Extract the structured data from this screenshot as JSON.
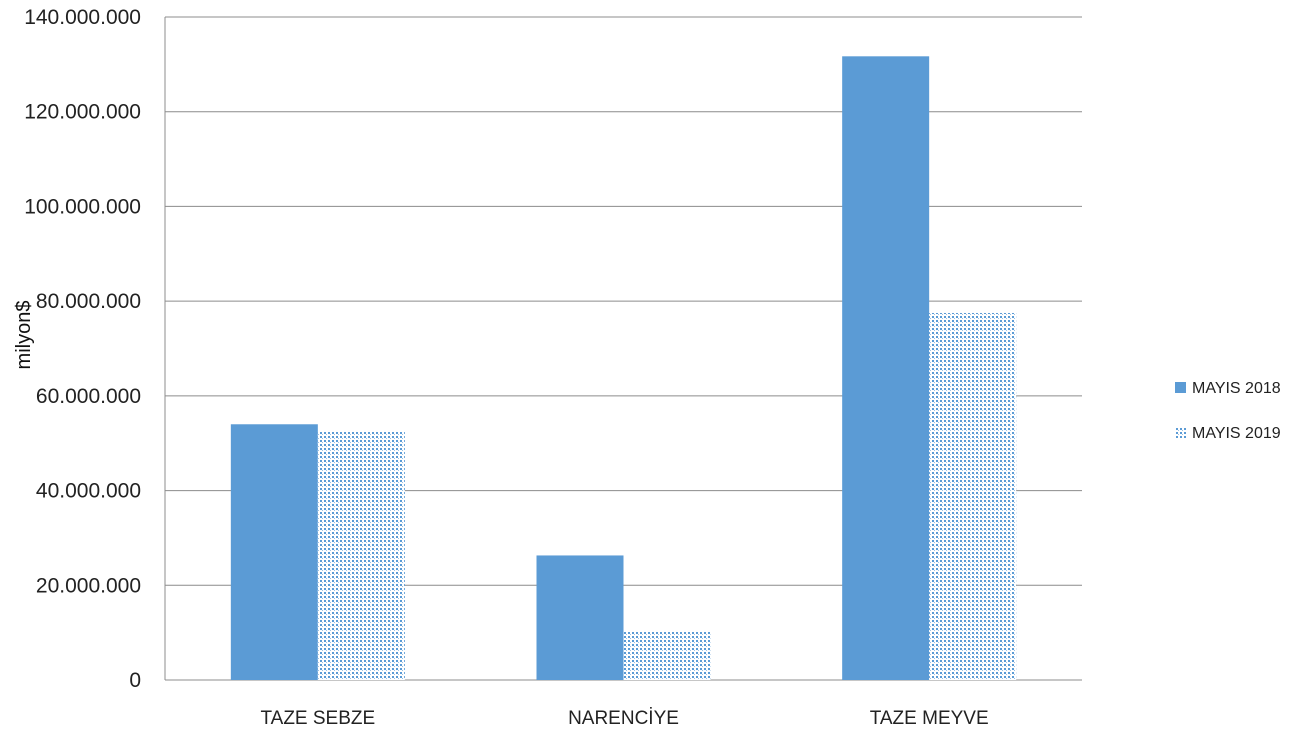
{
  "chart_data": {
    "type": "bar",
    "title": "",
    "xlabel": "",
    "ylabel": "milyon$",
    "categories": [
      "TAZE SEBZE",
      "NARENCİYE",
      "TAZE MEYVE"
    ],
    "series": [
      {
        "name": "MAYIS 2018",
        "values": [
          54000000,
          26300000,
          131700000
        ],
        "color": "#5b9bd5",
        "pattern": "solid"
      },
      {
        "name": "MAYIS 2019",
        "values": [
          52400000,
          10200000,
          77500000
        ],
        "color": "#5b9bd5",
        "pattern": "dotted"
      }
    ],
    "ylim": [
      0,
      140000000
    ],
    "yticks": [
      0,
      20000000,
      40000000,
      60000000,
      80000000,
      100000000,
      120000000,
      140000000
    ],
    "ytick_labels": [
      "0",
      "20.000.000",
      "40.000.000",
      "60.000.000",
      "80.000.000",
      "100.000.000",
      "120.000.000",
      "140.000.000"
    ],
    "grid": true,
    "legend_position": "right"
  }
}
